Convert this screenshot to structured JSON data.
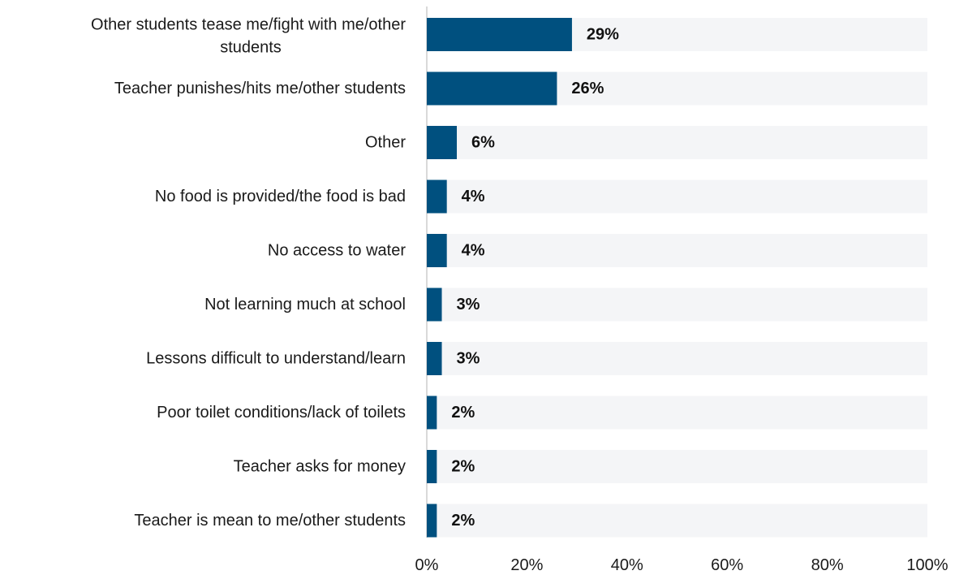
{
  "chart_data": {
    "type": "bar",
    "orientation": "horizontal",
    "categories": [
      "Other students tease me/fight with me/other students",
      "Teacher punishes/hits me/other students",
      "Other",
      "No food is provided/the food is bad",
      "No access to water",
      "Not learning much at school",
      "Lessons difficult to understand/learn",
      "Poor toilet conditions/lack of toilets",
      "Teacher asks for money",
      "Teacher is mean to me/other students"
    ],
    "values": [
      29,
      26,
      6,
      4,
      4,
      3,
      3,
      2,
      2,
      2
    ],
    "value_labels": [
      "29%",
      "26%",
      "6%",
      "4%",
      "4%",
      "3%",
      "3%",
      "2%",
      "2%",
      "2%"
    ],
    "xlim": [
      0,
      100
    ],
    "x_ticks": [
      0,
      20,
      40,
      60,
      80,
      100
    ],
    "x_tick_labels": [
      "0%",
      "20%",
      "40%",
      "60%",
      "80%",
      "100%"
    ],
    "title": "",
    "xlabel": "",
    "ylabel": "",
    "grid": false,
    "legend": "none",
    "colors": {
      "bar": "#00507F",
      "track": "#F4F5F7",
      "axis": "#D9D9D9"
    }
  }
}
